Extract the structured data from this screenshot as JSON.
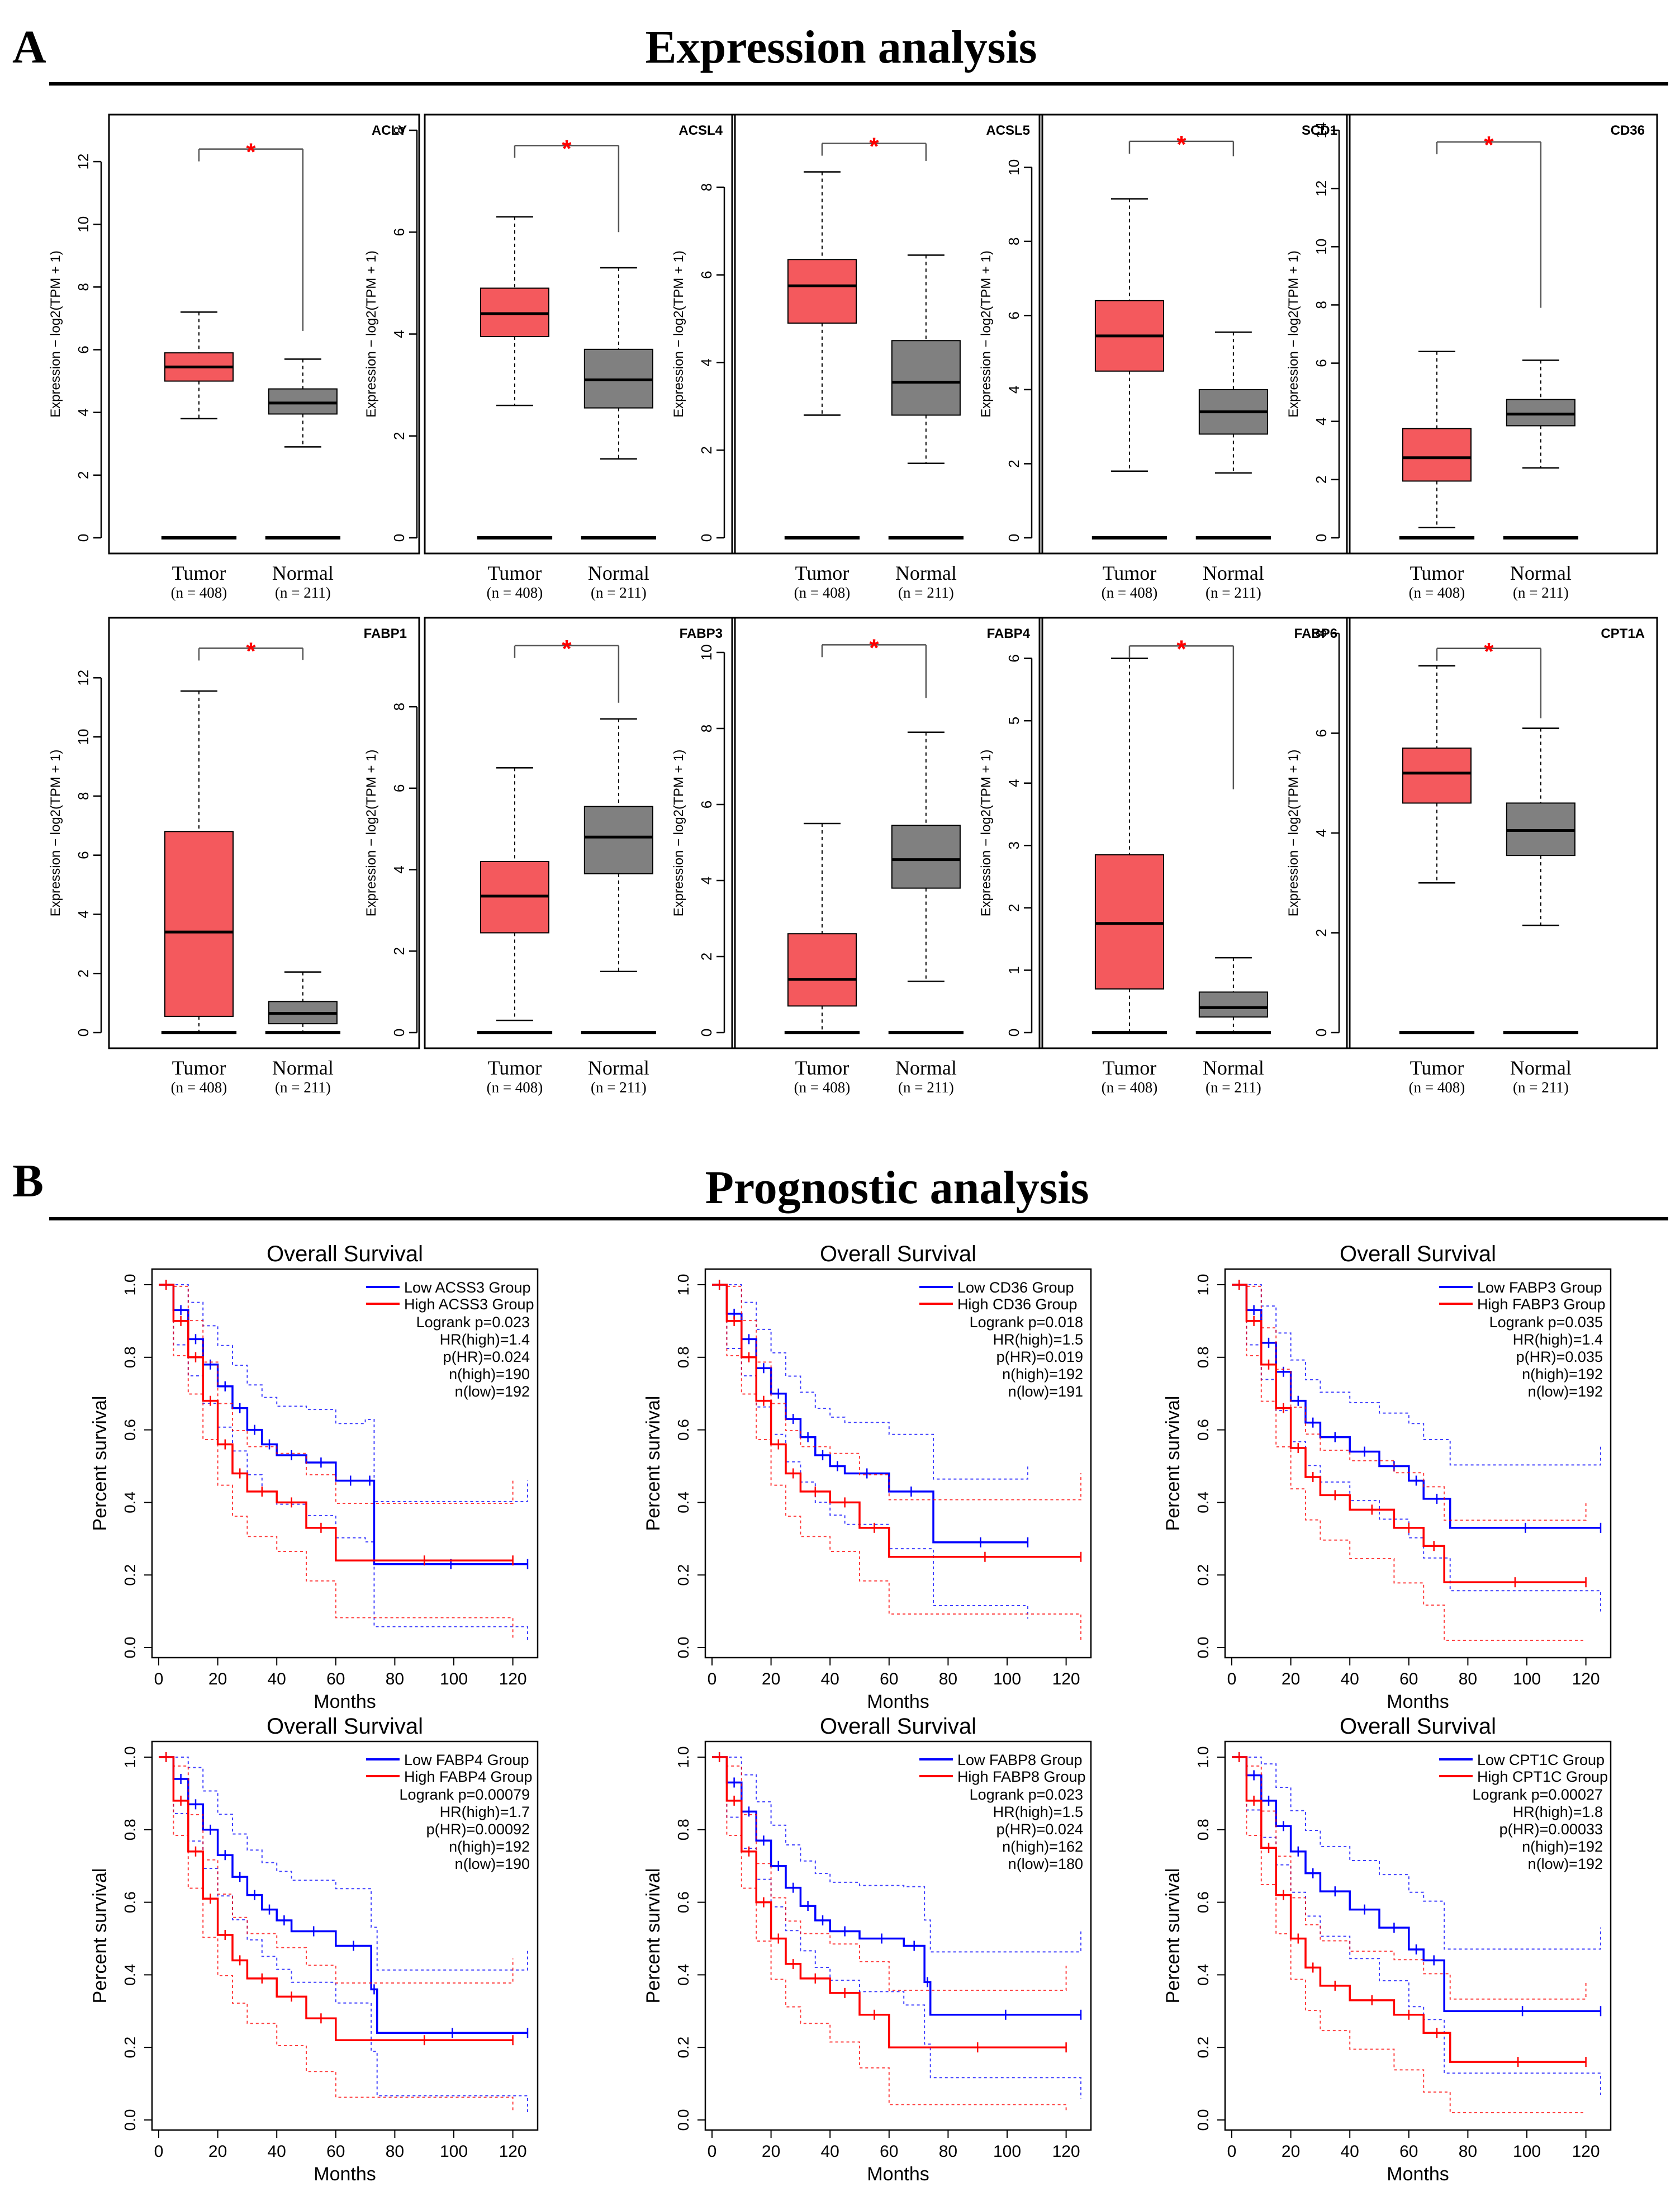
{
  "panel_a": {
    "letter": "A",
    "title": "Expression analysis"
  },
  "panel_b": {
    "letter": "B",
    "title": "Prognostic analysis"
  },
  "colors": {
    "tumor": "#f4595d",
    "normal": "#808080",
    "star": "#ff0000",
    "km_low": "#0000ff",
    "km_high": "#ff0000",
    "axis": "#000000"
  },
  "box_common": {
    "ylabel": "Expression − log2(TPM + 1)",
    "group1": "Tumor",
    "group1_n": "(n = 408)",
    "group2": "Normal",
    "group2_n": "(n = 211)",
    "sig_mark": "*"
  },
  "km_common": {
    "title": "Overall Survival",
    "xlabel": "Months",
    "ylabel": "Percent survival"
  },
  "chart_data": [
    {
      "type": "box",
      "gene": "ACLY",
      "ylim": [
        0,
        13
      ],
      "yticks": [
        0,
        2,
        4,
        6,
        8,
        10,
        12
      ],
      "tumor": {
        "min": 3.8,
        "q1": 5.0,
        "median": 5.45,
        "q3": 5.9,
        "max": 7.2
      },
      "normal": {
        "min": 2.9,
        "q1": 3.95,
        "median": 4.3,
        "q3": 4.75,
        "max": 5.7
      },
      "bracket_top": 12.4,
      "bracket_leg": 6.6
    },
    {
      "type": "box",
      "gene": "ACSL4",
      "ylim": [
        0,
        8
      ],
      "yticks": [
        0,
        2,
        4,
        6,
        8
      ],
      "tumor": {
        "min": 2.6,
        "q1": 3.95,
        "median": 4.4,
        "q3": 4.9,
        "max": 6.3
      },
      "normal": {
        "min": 1.55,
        "q1": 2.55,
        "median": 3.1,
        "q3": 3.7,
        "max": 5.3
      },
      "bracket_top": 7.7,
      "bracket_leg": 6.0
    },
    {
      "type": "box",
      "gene": "ACSL5",
      "ylim": [
        0,
        9.3
      ],
      "yticks": [
        0,
        2,
        4,
        6,
        8
      ],
      "tumor": {
        "min": 2.8,
        "q1": 4.9,
        "median": 5.75,
        "q3": 6.35,
        "max": 8.35
      },
      "normal": {
        "min": 1.7,
        "q1": 2.8,
        "median": 3.55,
        "q3": 4.5,
        "max": 6.45
      },
      "bracket_top": 9.0,
      "bracket_leg": 8.6
    },
    {
      "type": "box",
      "gene": "SCD1",
      "ylim": [
        0,
        11
      ],
      "yticks": [
        0,
        2,
        4,
        6,
        8,
        10
      ],
      "tumor": {
        "min": 1.8,
        "q1": 4.5,
        "median": 5.45,
        "q3": 6.4,
        "max": 9.15
      },
      "normal": {
        "min": 1.75,
        "q1": 2.8,
        "median": 3.4,
        "q3": 4.0,
        "max": 5.55
      },
      "bracket_top": 10.7,
      "bracket_leg": 10.3
    },
    {
      "type": "box",
      "gene": "CD36",
      "ylim": [
        0,
        14
      ],
      "yticks": [
        0,
        2,
        4,
        6,
        8,
        10,
        12,
        14
      ],
      "tumor": {
        "min": 0.35,
        "q1": 1.95,
        "median": 2.75,
        "q3": 3.75,
        "max": 6.4
      },
      "normal": {
        "min": 2.4,
        "q1": 3.85,
        "median": 4.25,
        "q3": 4.75,
        "max": 6.1
      },
      "bracket_top": 13.6,
      "bracket_leg": 7.9
    },
    {
      "type": "box",
      "gene": "FABP1",
      "ylim": [
        0,
        13.5
      ],
      "yticks": [
        0,
        2,
        4,
        6,
        8,
        10,
        12
      ],
      "tumor": {
        "min": 0.0,
        "q1": 0.55,
        "median": 3.4,
        "q3": 6.8,
        "max": 11.55
      },
      "normal": {
        "min": 0.0,
        "q1": 0.3,
        "median": 0.65,
        "q3": 1.05,
        "max": 2.05
      },
      "bracket_top": 13.0,
      "bracket_leg": 12.6
    },
    {
      "type": "box",
      "gene": "FABP3",
      "ylim": [
        0,
        9.8
      ],
      "yticks": [
        0,
        2,
        4,
        6,
        8
      ],
      "tumor": {
        "min": 0.3,
        "q1": 2.45,
        "median": 3.35,
        "q3": 4.2,
        "max": 6.5
      },
      "normal": {
        "min": 1.5,
        "q1": 3.9,
        "median": 4.8,
        "q3": 5.55,
        "max": 7.7
      },
      "bracket_top": 9.5,
      "bracket_leg": 8.1
    },
    {
      "type": "box",
      "gene": "FABP4",
      "ylim": [
        0,
        10.5
      ],
      "yticks": [
        0,
        2,
        4,
        6,
        8,
        10
      ],
      "tumor": {
        "min": 0.0,
        "q1": 0.7,
        "median": 1.4,
        "q3": 2.6,
        "max": 5.5
      },
      "normal": {
        "min": 1.35,
        "q1": 3.8,
        "median": 4.55,
        "q3": 5.45,
        "max": 7.9
      },
      "bracket_top": 10.2,
      "bracket_leg": 8.8
    },
    {
      "type": "box",
      "gene": "FABP6",
      "ylim": [
        0,
        6.4
      ],
      "yticks": [
        0,
        1,
        2,
        3,
        4,
        5,
        6
      ],
      "tumor": {
        "min": 0.0,
        "q1": 0.7,
        "median": 1.75,
        "q3": 2.85,
        "max": 6.0
      },
      "normal": {
        "min": 0.0,
        "q1": 0.25,
        "median": 0.4,
        "q3": 0.65,
        "max": 1.2
      },
      "bracket_top": 6.2,
      "bracket_leg": 3.9
    },
    {
      "type": "box",
      "gene": "CPT1A",
      "ylim": [
        0,
        8
      ],
      "yticks": [
        0,
        2,
        4,
        6,
        8
      ],
      "tumor": {
        "min": 3.0,
        "q1": 4.6,
        "median": 5.2,
        "q3": 5.7,
        "max": 7.35
      },
      "normal": {
        "min": 2.15,
        "q1": 3.55,
        "median": 4.05,
        "q3": 4.6,
        "max": 6.1
      },
      "bracket_top": 7.7,
      "bracket_leg": 6.3
    },
    {
      "type": "km",
      "title": "Overall Survival",
      "xlabel": "Months",
      "ylabel": "Percent survival",
      "xlim": [
        0,
        125
      ],
      "ylim": [
        0,
        1
      ],
      "xticks": [
        0,
        20,
        40,
        60,
        80,
        100,
        120
      ],
      "yticks": [
        0.0,
        0.2,
        0.4,
        0.6,
        0.8,
        1.0
      ],
      "legend": [
        "Low ACSS3 Group",
        "High ACSS3 Group"
      ],
      "stats": [
        "Logrank p=0.023",
        "HR(high)=1.4",
        "p(HR)=0.024",
        "n(high)=190",
        "n(low)=192"
      ],
      "low": [
        [
          0,
          1
        ],
        [
          5,
          0.93
        ],
        [
          10,
          0.85
        ],
        [
          15,
          0.78
        ],
        [
          20,
          0.72
        ],
        [
          25,
          0.66
        ],
        [
          30,
          0.6
        ],
        [
          35,
          0.56
        ],
        [
          40,
          0.53
        ],
        [
          50,
          0.51
        ],
        [
          60,
          0.46
        ],
        [
          70,
          0.46
        ],
        [
          73,
          0.23
        ],
        [
          125,
          0.23
        ]
      ],
      "high": [
        [
          0,
          1
        ],
        [
          5,
          0.9
        ],
        [
          10,
          0.8
        ],
        [
          15,
          0.68
        ],
        [
          20,
          0.56
        ],
        [
          25,
          0.48
        ],
        [
          30,
          0.43
        ],
        [
          40,
          0.4
        ],
        [
          50,
          0.33
        ],
        [
          60,
          0.24
        ],
        [
          120,
          0.24
        ]
      ]
    },
    {
      "type": "km",
      "title": "Overall Survival",
      "xlabel": "Months",
      "ylabel": "Percent survival",
      "xlim": [
        0,
        125
      ],
      "ylim": [
        0,
        1
      ],
      "xticks": [
        0,
        20,
        40,
        60,
        80,
        100,
        120
      ],
      "yticks": [
        0.0,
        0.2,
        0.4,
        0.6,
        0.8,
        1.0
      ],
      "legend": [
        "Low CD36 Group",
        "High CD36 Group"
      ],
      "stats": [
        "Logrank p=0.018",
        "HR(high)=1.5",
        "p(HR)=0.019",
        "n(high)=192",
        "n(low)=191"
      ],
      "low": [
        [
          0,
          1
        ],
        [
          5,
          0.92
        ],
        [
          10,
          0.85
        ],
        [
          15,
          0.77
        ],
        [
          20,
          0.7
        ],
        [
          25,
          0.63
        ],
        [
          30,
          0.58
        ],
        [
          35,
          0.53
        ],
        [
          40,
          0.5
        ],
        [
          45,
          0.48
        ],
        [
          60,
          0.43
        ],
        [
          75,
          0.29
        ],
        [
          107,
          0.29
        ]
      ],
      "high": [
        [
          0,
          1
        ],
        [
          5,
          0.9
        ],
        [
          10,
          0.8
        ],
        [
          15,
          0.68
        ],
        [
          20,
          0.56
        ],
        [
          25,
          0.48
        ],
        [
          30,
          0.43
        ],
        [
          40,
          0.4
        ],
        [
          50,
          0.33
        ],
        [
          60,
          0.25
        ],
        [
          125,
          0.25
        ]
      ]
    },
    {
      "type": "km",
      "title": "Overall Survival",
      "xlabel": "Months",
      "ylabel": "Percent survival",
      "xlim": [
        0,
        125
      ],
      "ylim": [
        0,
        1
      ],
      "xticks": [
        0,
        20,
        40,
        60,
        80,
        100,
        120
      ],
      "yticks": [
        0.0,
        0.2,
        0.4,
        0.6,
        0.8,
        1.0
      ],
      "legend": [
        "Low FABP3 Group",
        "High FABP3 Group"
      ],
      "stats": [
        "Logrank p=0.035",
        "HR(high)=1.4",
        "p(HR)=0.035",
        "n(high)=192",
        "n(low)=192"
      ],
      "low": [
        [
          0,
          1
        ],
        [
          5,
          0.93
        ],
        [
          10,
          0.84
        ],
        [
          15,
          0.76
        ],
        [
          20,
          0.68
        ],
        [
          25,
          0.62
        ],
        [
          30,
          0.58
        ],
        [
          40,
          0.54
        ],
        [
          50,
          0.5
        ],
        [
          60,
          0.46
        ],
        [
          65,
          0.41
        ],
        [
          74,
          0.33
        ],
        [
          125,
          0.33
        ]
      ],
      "high": [
        [
          0,
          1
        ],
        [
          5,
          0.9
        ],
        [
          10,
          0.78
        ],
        [
          15,
          0.66
        ],
        [
          20,
          0.55
        ],
        [
          25,
          0.47
        ],
        [
          30,
          0.42
        ],
        [
          40,
          0.38
        ],
        [
          55,
          0.33
        ],
        [
          65,
          0.28
        ],
        [
          72,
          0.18
        ],
        [
          120,
          0.18
        ]
      ]
    },
    {
      "type": "km",
      "title": "Overall Survival",
      "xlabel": "Months",
      "ylabel": "Percent survival",
      "xlim": [
        0,
        125
      ],
      "ylim": [
        0,
        1
      ],
      "xticks": [
        0,
        20,
        40,
        60,
        80,
        100,
        120
      ],
      "yticks": [
        0.0,
        0.2,
        0.4,
        0.6,
        0.8,
        1.0
      ],
      "legend": [
        "Low FABP4 Group",
        "High FABP4 Group"
      ],
      "stats": [
        "Logrank p=0.00079",
        "HR(high)=1.7",
        "p(HR)=0.00092",
        "n(high)=192",
        "n(low)=190"
      ],
      "low": [
        [
          0,
          1
        ],
        [
          5,
          0.94
        ],
        [
          10,
          0.87
        ],
        [
          15,
          0.8
        ],
        [
          20,
          0.73
        ],
        [
          25,
          0.67
        ],
        [
          30,
          0.62
        ],
        [
          35,
          0.58
        ],
        [
          40,
          0.55
        ],
        [
          45,
          0.52
        ],
        [
          60,
          0.48
        ],
        [
          72,
          0.36
        ],
        [
          74,
          0.24
        ],
        [
          125,
          0.24
        ]
      ],
      "high": [
        [
          0,
          1
        ],
        [
          5,
          0.88
        ],
        [
          10,
          0.74
        ],
        [
          15,
          0.61
        ],
        [
          20,
          0.51
        ],
        [
          25,
          0.44
        ],
        [
          30,
          0.39
        ],
        [
          40,
          0.34
        ],
        [
          50,
          0.28
        ],
        [
          60,
          0.22
        ],
        [
          120,
          0.22
        ]
      ]
    },
    {
      "type": "km",
      "title": "Overall Survival",
      "xlabel": "Months",
      "ylabel": "Percent survival",
      "xlim": [
        0,
        125
      ],
      "ylim": [
        0,
        1
      ],
      "xticks": [
        0,
        20,
        40,
        60,
        80,
        100,
        120
      ],
      "yticks": [
        0.0,
        0.2,
        0.4,
        0.6,
        0.8,
        1.0
      ],
      "legend": [
        "Low FABP8 Group",
        "High FABP8 Group"
      ],
      "stats": [
        "Logrank p=0.023",
        "HR(high)=1.5",
        "p(HR)=0.024",
        "n(high)=162",
        "n(low)=180"
      ],
      "low": [
        [
          0,
          1
        ],
        [
          5,
          0.93
        ],
        [
          10,
          0.85
        ],
        [
          15,
          0.77
        ],
        [
          20,
          0.7
        ],
        [
          25,
          0.64
        ],
        [
          30,
          0.59
        ],
        [
          35,
          0.55
        ],
        [
          40,
          0.52
        ],
        [
          50,
          0.5
        ],
        [
          65,
          0.48
        ],
        [
          72,
          0.38
        ],
        [
          74,
          0.29
        ],
        [
          125,
          0.29
        ]
      ],
      "high": [
        [
          0,
          1
        ],
        [
          5,
          0.88
        ],
        [
          10,
          0.74
        ],
        [
          15,
          0.6
        ],
        [
          20,
          0.5
        ],
        [
          25,
          0.43
        ],
        [
          30,
          0.39
        ],
        [
          40,
          0.35
        ],
        [
          50,
          0.29
        ],
        [
          60,
          0.2
        ],
        [
          120,
          0.2
        ]
      ]
    },
    {
      "type": "km",
      "title": "Overall Survival",
      "xlabel": "Months",
      "ylabel": "Percent survival",
      "xlim": [
        0,
        125
      ],
      "ylim": [
        0,
        1
      ],
      "xticks": [
        0,
        20,
        40,
        60,
        80,
        100,
        120
      ],
      "yticks": [
        0.0,
        0.2,
        0.4,
        0.6,
        0.8,
        1.0
      ],
      "legend": [
        "Low CPT1C Group",
        "High CPT1C Group"
      ],
      "stats": [
        "Logrank p=0.00027",
        "HR(high)=1.8",
        "p(HR)=0.00033",
        "n(high)=192",
        "n(low)=192"
      ],
      "low": [
        [
          0,
          1
        ],
        [
          5,
          0.95
        ],
        [
          10,
          0.88
        ],
        [
          15,
          0.81
        ],
        [
          20,
          0.74
        ],
        [
          25,
          0.68
        ],
        [
          30,
          0.63
        ],
        [
          40,
          0.58
        ],
        [
          50,
          0.53
        ],
        [
          60,
          0.47
        ],
        [
          65,
          0.44
        ],
        [
          72,
          0.3
        ],
        [
          125,
          0.3
        ]
      ],
      "high": [
        [
          0,
          1
        ],
        [
          5,
          0.88
        ],
        [
          10,
          0.75
        ],
        [
          15,
          0.62
        ],
        [
          20,
          0.5
        ],
        [
          25,
          0.42
        ],
        [
          30,
          0.37
        ],
        [
          40,
          0.33
        ],
        [
          55,
          0.29
        ],
        [
          65,
          0.24
        ],
        [
          74,
          0.16
        ],
        [
          120,
          0.16
        ]
      ]
    }
  ]
}
